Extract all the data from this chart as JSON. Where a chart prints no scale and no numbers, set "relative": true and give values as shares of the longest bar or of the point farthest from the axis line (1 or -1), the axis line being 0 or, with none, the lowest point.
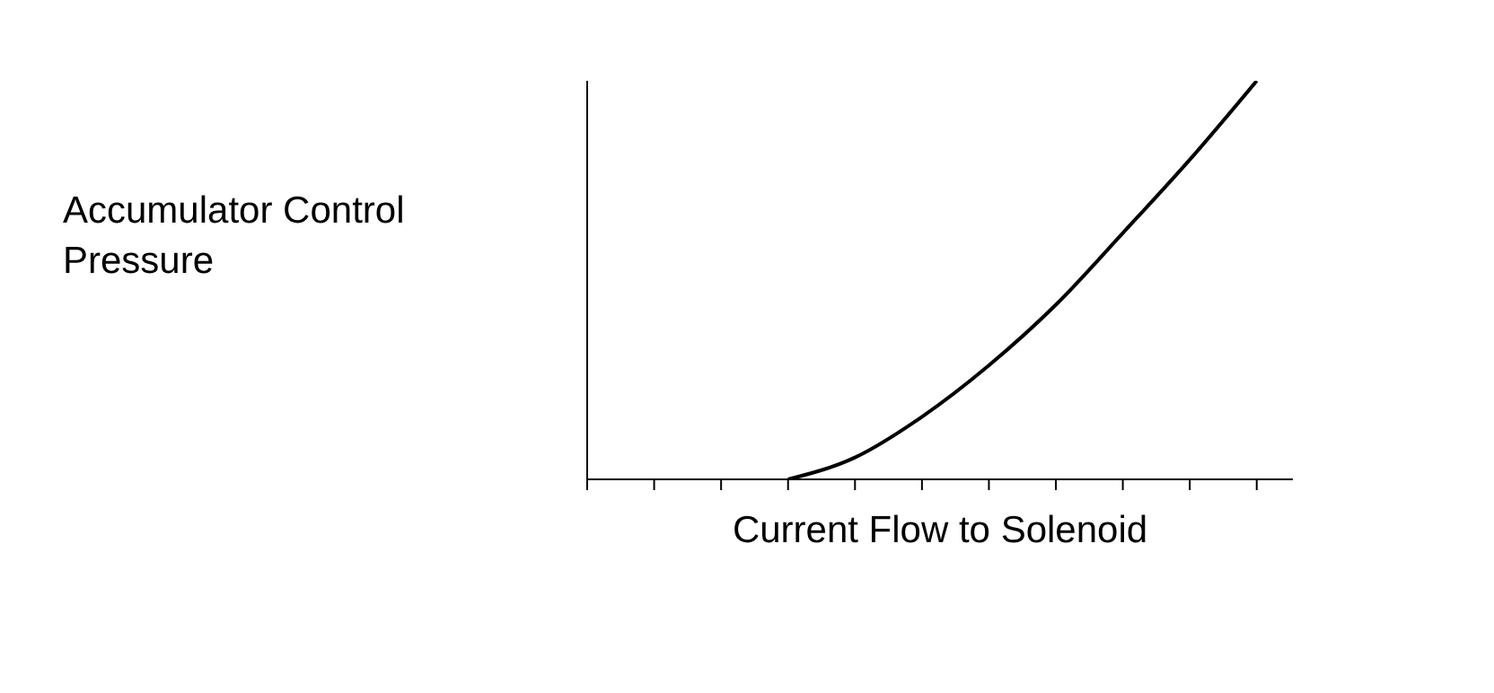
{
  "chart_data": {
    "type": "line",
    "relative": true,
    "xlabel": "Current Flow to Solenoid",
    "ylabel": "Accumulator Control Pressure",
    "categories": [
      null,
      null,
      null,
      null,
      null,
      null,
      null,
      null,
      null,
      null,
      null
    ],
    "series": [
      {
        "color": "#000000",
        "values": [
          null,
          null,
          null,
          0,
          0.055,
          0.157,
          0.286,
          0.438,
          0.618,
          0.802,
          1
        ]
      }
    ],
    "marker": "none",
    "grid": false,
    "legend": false
  }
}
